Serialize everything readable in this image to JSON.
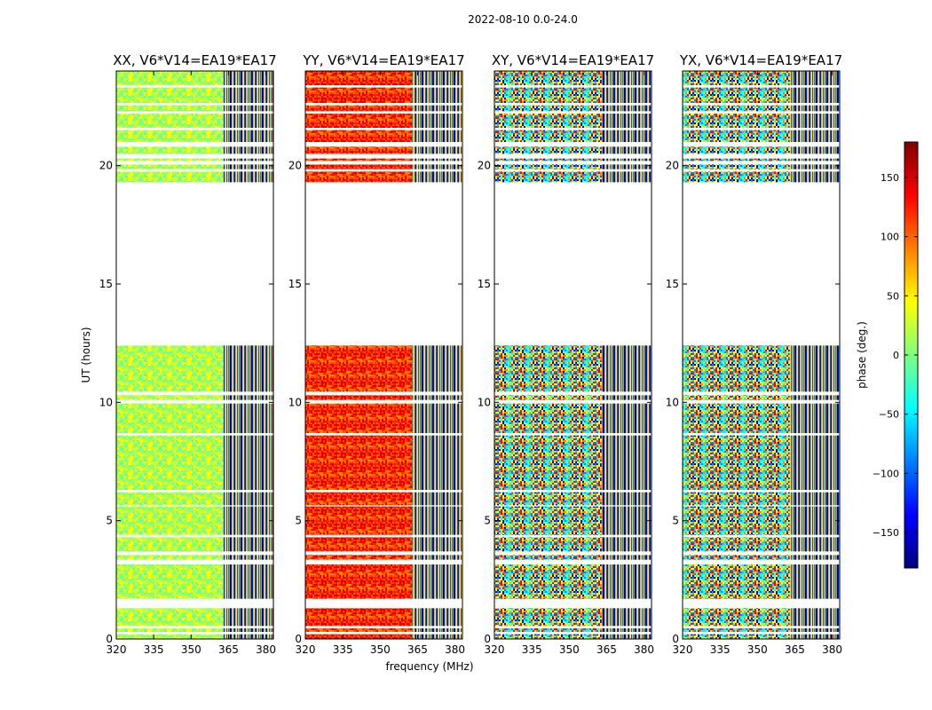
{
  "figure": {
    "suptitle": "2022-08-10 0.0-24.0",
    "xlabel": "frequency (MHz)",
    "ylabel": "UT (hours)"
  },
  "chart_data": {
    "type": "heatmap",
    "x": {
      "range": [
        320,
        383
      ],
      "ticks": [
        320,
        335,
        350,
        365,
        380
      ],
      "label": "frequency (MHz)"
    },
    "y": {
      "range": [
        0,
        24
      ],
      "ticks": [
        0,
        5,
        10,
        15,
        20
      ],
      "label": "UT (hours)"
    },
    "colorbar": {
      "label": "phase (deg.)",
      "range": [
        -180,
        180
      ],
      "ticks": [
        -150,
        -100,
        -50,
        0,
        50,
        100,
        150
      ],
      "colormap": [
        "#00007f",
        "#0000ff",
        "#007fff",
        "#00ffff",
        "#7fff7f",
        "#ffff00",
        "#ff7f00",
        "#ff0000",
        "#7f0000"
      ]
    },
    "panels": [
      {
        "title": "XX, V6*V14=EA19*EA17"
      },
      {
        "title": "YY, V6*V14=EA19*EA17"
      },
      {
        "title": "XY, V6*V14=EA19*EA17"
      },
      {
        "title": "YX, V6*V14=EA19*EA17"
      }
    ],
    "data_blocks_ut": [
      [
        0.0,
        0.2
      ],
      [
        0.3,
        0.45
      ],
      [
        0.55,
        1.3
      ],
      [
        1.7,
        3.15
      ],
      [
        3.35,
        3.55
      ],
      [
        3.7,
        4.3
      ],
      [
        4.4,
        5.6
      ],
      [
        5.65,
        6.2
      ],
      [
        6.3,
        8.6
      ],
      [
        8.7,
        9.95
      ],
      [
        10.1,
        10.3
      ],
      [
        10.45,
        12.4
      ],
      [
        19.3,
        19.75
      ],
      [
        19.85,
        20.05
      ],
      [
        20.2,
        20.3
      ],
      [
        20.5,
        20.8
      ],
      [
        21.0,
        21.5
      ],
      [
        21.6,
        22.2
      ],
      [
        22.3,
        22.55
      ],
      [
        22.65,
        23.3
      ],
      [
        23.4,
        24.0
      ]
    ]
  }
}
